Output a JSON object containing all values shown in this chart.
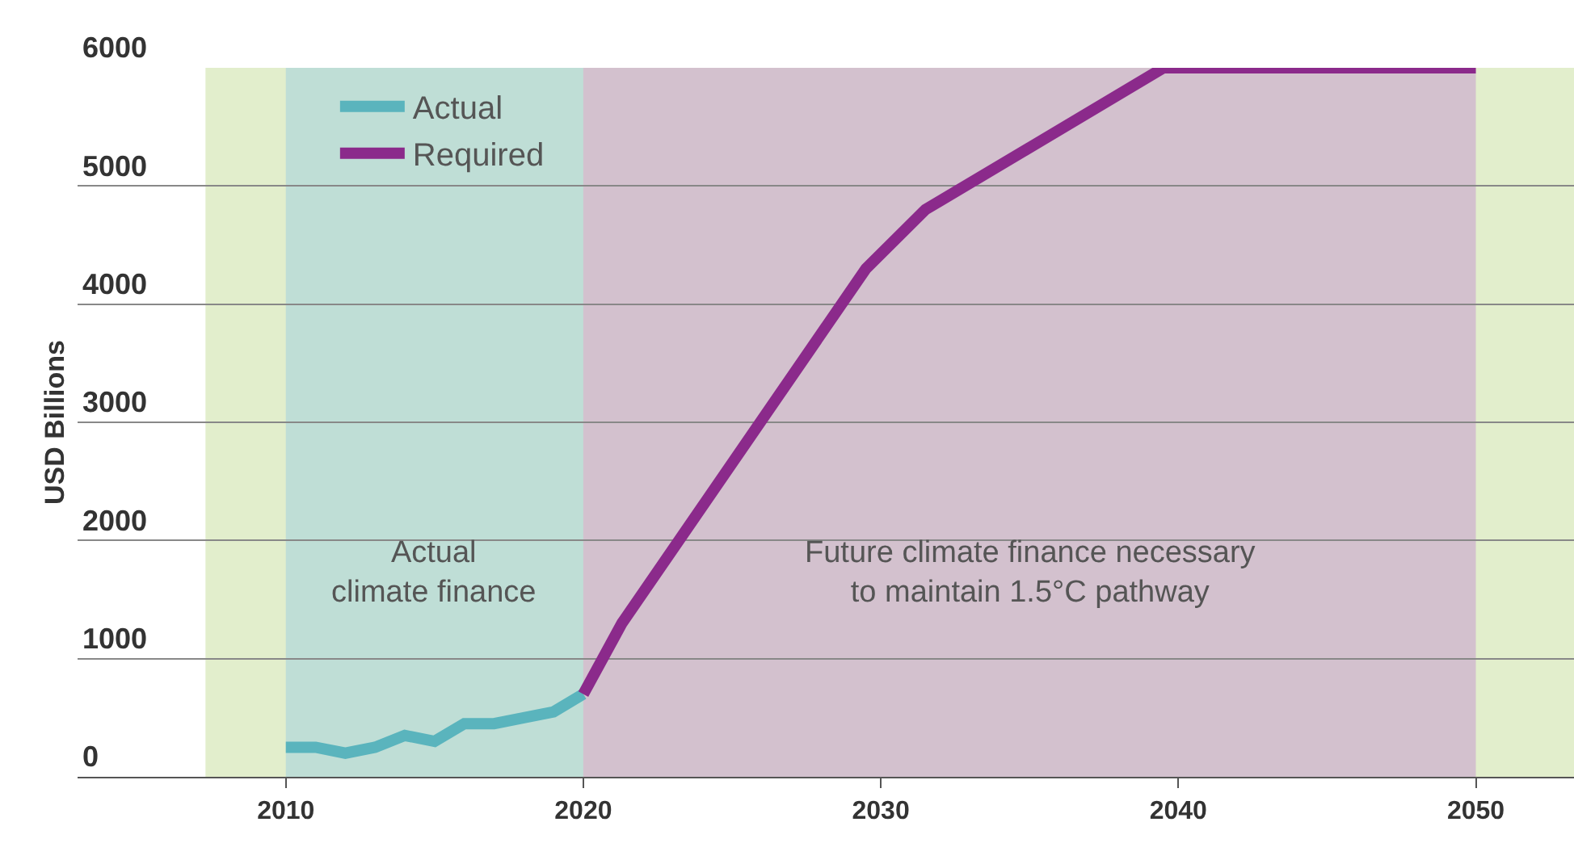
{
  "chart_data": {
    "type": "line",
    "ylabel": "USD Billions",
    "series": [
      {
        "name": "Actual",
        "color": "#5ab4bd",
        "x": [
          2010,
          2011,
          2012,
          2013,
          2014,
          2015,
          2016,
          2017,
          2018,
          2019,
          2020
        ],
        "values": [
          250,
          250,
          200,
          250,
          350,
          300,
          450,
          450,
          500,
          550,
          700
        ]
      },
      {
        "name": "Required",
        "color": "#8b2a8b",
        "x": [
          2020,
          2021.3,
          2029.5,
          2031.5,
          2039.5,
          2050
        ],
        "values": [
          700,
          1300,
          4300,
          4800,
          6000,
          6000
        ]
      }
    ],
    "bands": [
      {
        "axis": "x",
        "from": 2007.3,
        "to": 2053.3,
        "label": null,
        "color": "#cfe3aa"
      },
      {
        "axis": "x",
        "from": 2010,
        "to": 2020,
        "label": "Actual\nclimate finance",
        "color": "#a9d3dc"
      },
      {
        "axis": "x",
        "from": 2020,
        "to": 2050,
        "label": "Future climate finance necessary\nto maintain 1.5°C pathway",
        "color": "#c9a3cf"
      }
    ],
    "xlim": [
      2003,
      2053.3
    ],
    "xticks": [
      2010,
      2020,
      2030,
      2040,
      2050
    ],
    "ylim": [
      0,
      6000
    ],
    "yticks": [
      0,
      1000,
      2000,
      3000,
      4000,
      5000,
      6000
    ],
    "grid": "y",
    "legend": "top left",
    "line_style": "solid",
    "marker": "none"
  }
}
